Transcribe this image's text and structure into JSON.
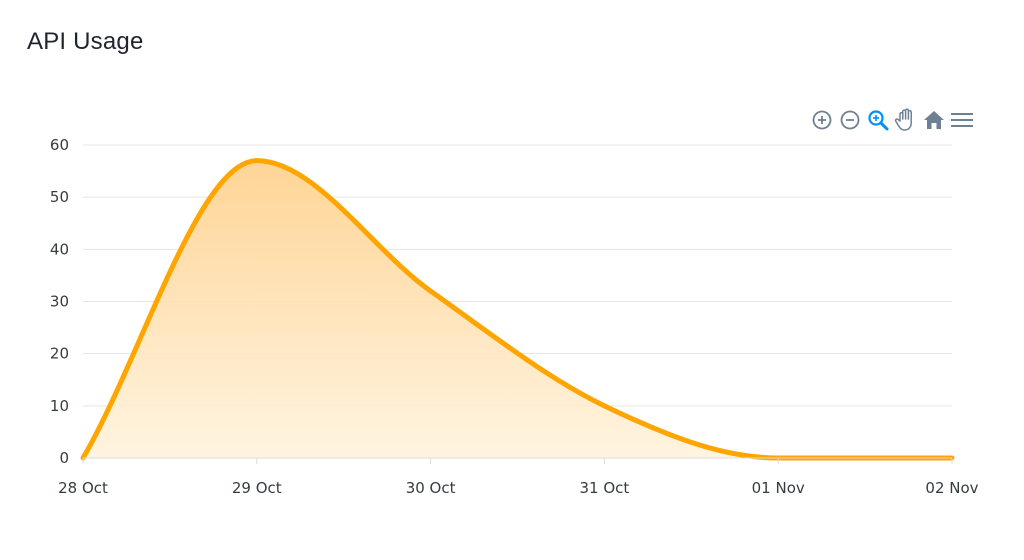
{
  "title": "API Usage",
  "toolbar": {
    "tools": [
      {
        "icon": "zoom-in-icon"
      },
      {
        "icon": "zoom-out-icon"
      },
      {
        "icon": "selection-zoom-icon",
        "active": true
      },
      {
        "icon": "pan-hand-icon"
      },
      {
        "icon": "reset-home-icon"
      },
      {
        "icon": "menu-icon"
      }
    ]
  },
  "colors": {
    "series": "#ffa500",
    "fill_top": "#ffd08a",
    "fill_bottom": "#fff3de",
    "grid": "#e5e5e5",
    "toolbar_icon": "#6e8192",
    "toolbar_active": "#008ffb"
  },
  "chart_data": {
    "type": "area",
    "title": "API Usage",
    "xlabel": "",
    "ylabel": "",
    "x_tick_labels": [
      "28 Oct",
      "29 Oct",
      "30 Oct",
      "31 Oct",
      "01 Nov",
      "02 Nov"
    ],
    "y_tick_labels": [
      "0",
      "10",
      "20",
      "30",
      "40",
      "50",
      "60"
    ],
    "ylim": [
      0,
      60
    ],
    "grid": true,
    "legend": "none",
    "series": [
      {
        "x": [
          "28 Oct",
          "29 Oct",
          "30 Oct",
          "31 Oct",
          "01 Nov",
          "02 Nov"
        ],
        "values": [
          0,
          57,
          32,
          10,
          0,
          0
        ]
      }
    ]
  }
}
